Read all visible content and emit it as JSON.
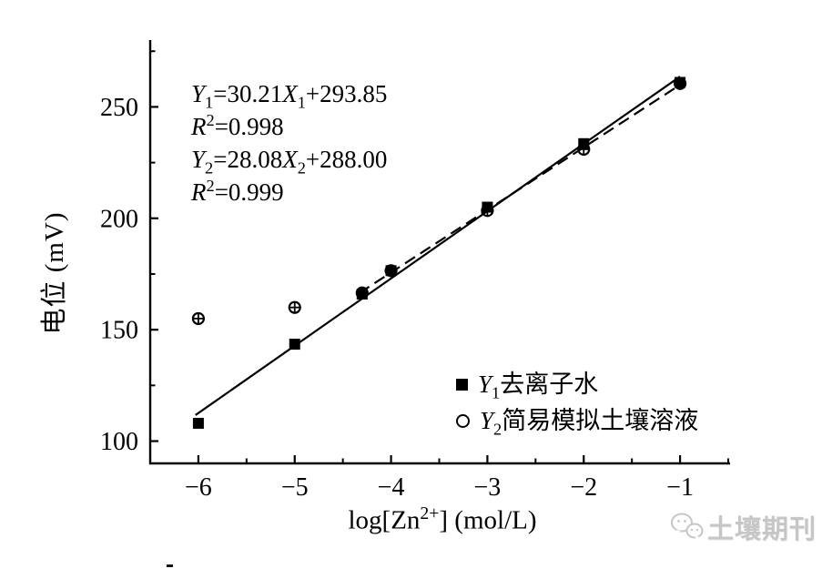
{
  "colors": {
    "ink": "#000000",
    "watermark": "#c6c6c6"
  },
  "watermark": {
    "text": "土壤期刊"
  },
  "chart_data": {
    "type": "scatter",
    "title": "",
    "xlabel": "log[Zn^2+] (mol/L)",
    "ylabel": "电位 (mV)",
    "xlim": [
      -6.5,
      -0.5
    ],
    "ylim": [
      90,
      280
    ],
    "grid": false,
    "legend_position": "lower right inside",
    "x_major_ticks": [
      -6,
      -5,
      -4,
      -3,
      -2,
      -1
    ],
    "x_minor_ticks": [
      -5.5,
      -4.5,
      -3.5,
      -2.5,
      -1.5,
      -0.5
    ],
    "x_tick_labels": [
      "−6",
      "−5",
      "−4",
      "−3",
      "−2",
      "−1"
    ],
    "y_major_ticks": [
      100,
      150,
      200,
      250
    ],
    "y_minor_ticks": [
      125,
      175,
      225,
      275
    ],
    "y_tick_labels": [
      "100",
      "150",
      "200",
      "250"
    ],
    "series": [
      {
        "name": "Y_1去离子水",
        "marker": "filled-square",
        "x": [
          -6,
          -5,
          -4.3,
          -4,
          -3,
          -2,
          -1
        ],
        "y": [
          108,
          143.5,
          166,
          176.5,
          205,
          233.5,
          261
        ]
      },
      {
        "name": "Y_2简易模拟土壤溶液",
        "marker": "open-circle-cross",
        "x": [
          -6,
          -5,
          -4.3,
          -4,
          -3,
          -2,
          -1
        ],
        "y": [
          155,
          160,
          166.5,
          176.5,
          203.5,
          231,
          260.5
        ]
      }
    ],
    "fit_lines": [
      {
        "name": "Y1-fit",
        "style": "solid",
        "slope": 30.21,
        "intercept": 293.85,
        "x_start": -6.03,
        "x_end": -1.0
      },
      {
        "name": "Y2-fit",
        "style": "dashed",
        "slope": 28.08,
        "intercept": 288.0,
        "x_start": -4.33,
        "x_end": -0.98
      }
    ],
    "annotation": {
      "lines": [
        "Y_1=30.21X_1+293.85",
        "R^2=0.998",
        "Y_2=28.08X_2+288.00",
        "R^2=0.999"
      ]
    },
    "legend": {
      "entries": [
        {
          "marker": "filled-square",
          "label": "Y_1去离子水"
        },
        {
          "marker": "open-circle",
          "label": "Y_2简易模拟土壤溶液"
        }
      ]
    }
  }
}
